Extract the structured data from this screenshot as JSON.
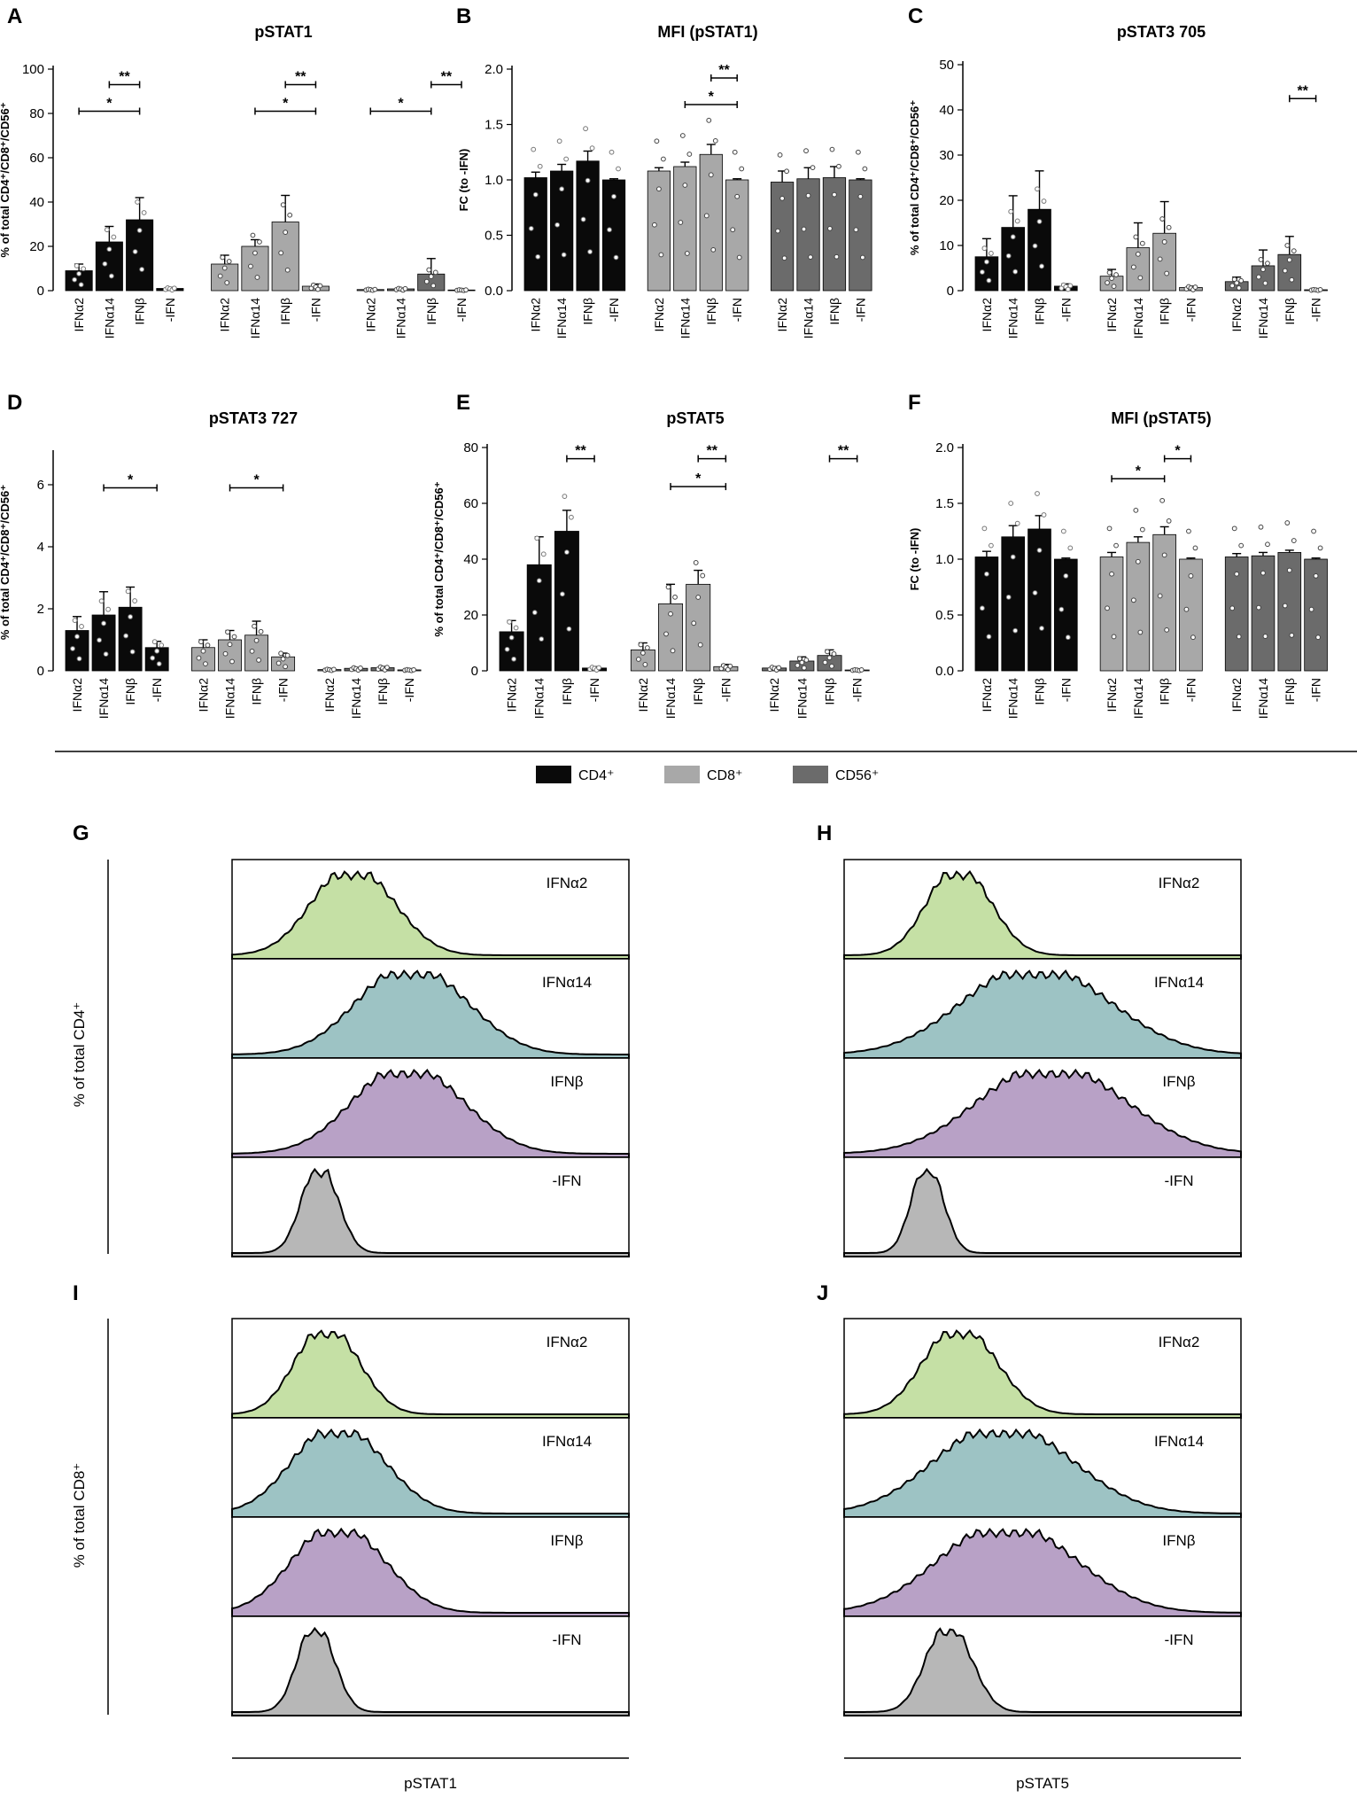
{
  "legend": {
    "items": [
      {
        "label": "CD4⁺",
        "color": "#0a0a0a"
      },
      {
        "label": "CD8⁺",
        "color": "#a8a8a8"
      },
      {
        "label": "CD56⁺",
        "color": "#6b6b6b"
      }
    ]
  },
  "group_colors": [
    "#0a0a0a",
    "#a8a8a8",
    "#6b6b6b"
  ],
  "chart_data": [
    {
      "panel": "A",
      "type": "bar",
      "title": "pSTAT1",
      "ylabel": "% of total CD4⁺/CD8⁺/CD56⁺",
      "ylim": [
        0,
        100
      ],
      "yticks": [
        "0",
        "20",
        "40",
        "60",
        "80",
        "100"
      ],
      "categories": [
        "IFNα2",
        "IFNα14",
        "IFNβ",
        "-IFN"
      ],
      "series": [
        {
          "name": "CD4⁺",
          "values": [
            9,
            22,
            32,
            1
          ],
          "errors": [
            3,
            7,
            10,
            0.5
          ]
        },
        {
          "name": "CD8⁺",
          "values": [
            12,
            20,
            31,
            2
          ],
          "errors": [
            4,
            3,
            12,
            1
          ]
        },
        {
          "name": "CD56⁺",
          "values": [
            0.5,
            0.8,
            7.5,
            0.3
          ],
          "errors": [
            0.2,
            0.3,
            7,
            0.1
          ]
        }
      ],
      "significance": [
        {
          "series": 0,
          "from": 1,
          "to": 2,
          "label": "**",
          "y": 93
        },
        {
          "series": 0,
          "from": 0,
          "to": 2,
          "label": "*",
          "y": 81
        },
        {
          "series": 1,
          "from": 2,
          "to": 3,
          "label": "**",
          "y": 93
        },
        {
          "series": 1,
          "from": 1,
          "to": 3,
          "label": "*",
          "y": 81
        },
        {
          "series": 2,
          "from": 2,
          "to": 3,
          "label": "**",
          "y": 93
        },
        {
          "series": 2,
          "from": 0,
          "to": 2,
          "label": "*",
          "y": 81
        }
      ]
    },
    {
      "panel": "B",
      "type": "bar",
      "title": "MFI (pSTAT1)",
      "ylabel": "FC (to -IFN)",
      "ylim": [
        0,
        2
      ],
      "yticks": [
        "0.0",
        "0.5",
        "1.0",
        "1.5",
        "2.0"
      ],
      "categories": [
        "IFNα2",
        "IFNα14",
        "IFNβ",
        "-IFN"
      ],
      "series": [
        {
          "name": "CD4⁺",
          "values": [
            1.02,
            1.08,
            1.17,
            1.0
          ],
          "errors": [
            0.05,
            0.06,
            0.09,
            0.01
          ]
        },
        {
          "name": "CD8⁺",
          "values": [
            1.08,
            1.12,
            1.23,
            1.0
          ],
          "errors": [
            0.03,
            0.04,
            0.09,
            0.01
          ]
        },
        {
          "name": "CD56⁺",
          "values": [
            0.98,
            1.01,
            1.02,
            1.0
          ],
          "errors": [
            0.1,
            0.1,
            0.1,
            0.01
          ]
        }
      ],
      "significance": [
        {
          "series": 1,
          "from": 2,
          "to": 3,
          "label": "**",
          "y": 1.92
        },
        {
          "series": 1,
          "from": 1,
          "to": 3,
          "label": "*",
          "y": 1.68
        }
      ]
    },
    {
      "panel": "C",
      "type": "bar",
      "title": "pSTAT3 705",
      "ylabel": "% of total CD4⁺/CD8⁺/CD56⁺",
      "ylim": [
        0,
        50
      ],
      "yticks": [
        "0",
        "10",
        "20",
        "30",
        "40",
        "50"
      ],
      "categories": [
        "IFNα2",
        "IFNα14",
        "IFNβ",
        "-IFN"
      ],
      "series": [
        {
          "name": "CD4⁺",
          "values": [
            7.5,
            14,
            18,
            1
          ],
          "errors": [
            4,
            7,
            8.5,
            0.5
          ]
        },
        {
          "name": "CD8⁺",
          "values": [
            3.2,
            9.5,
            12.7,
            0.7
          ],
          "errors": [
            1.5,
            5.5,
            7,
            0.3
          ]
        },
        {
          "name": "CD56⁺",
          "values": [
            2,
            5.5,
            8,
            0.2
          ],
          "errors": [
            1,
            3.5,
            4,
            0.1
          ]
        }
      ],
      "significance": [
        {
          "series": 2,
          "from": 2,
          "to": 3,
          "label": "**",
          "y": 42.5
        }
      ]
    },
    {
      "panel": "D",
      "type": "bar",
      "title": "pSTAT3 727",
      "ylabel": "% of total CD4⁺/CD8⁺/CD56⁺",
      "ylim": [
        0,
        7
      ],
      "yticks": [
        "0",
        "2",
        "4",
        "6"
      ],
      "categories": [
        "IFNα2",
        "IFNα14",
        "IFNβ",
        "-IFN"
      ],
      "series": [
        {
          "name": "CD4⁺",
          "values": [
            1.3,
            1.8,
            2.05,
            0.75
          ],
          "errors": [
            0.45,
            0.75,
            0.65,
            0.2
          ]
        },
        {
          "name": "CD8⁺",
          "values": [
            0.75,
            1.0,
            1.15,
            0.45
          ],
          "errors": [
            0.25,
            0.3,
            0.45,
            0.12
          ]
        },
        {
          "name": "CD56⁺",
          "values": [
            0.04,
            0.08,
            0.1,
            0.03
          ],
          "errors": [
            0.02,
            0.03,
            0.04,
            0.01
          ]
        }
      ],
      "significance": [
        {
          "series": 0,
          "from": 1,
          "to": 3,
          "label": "*",
          "y": 5.9
        },
        {
          "series": 1,
          "from": 1,
          "to": 3,
          "label": "*",
          "y": 5.9
        }
      ]
    },
    {
      "panel": "E",
      "type": "bar",
      "title": "pSTAT5",
      "ylabel": "% of total CD4⁺/CD8⁺/CD56⁺",
      "ylim": [
        0,
        80
      ],
      "yticks": [
        "0",
        "20",
        "40",
        "60",
        "80"
      ],
      "categories": [
        "IFNα2",
        "IFNα14",
        "IFNβ",
        "-IFN"
      ],
      "series": [
        {
          "name": "CD4⁺",
          "values": [
            14,
            38,
            50,
            1
          ],
          "errors": [
            4,
            10,
            7.5,
            0.5
          ]
        },
        {
          "name": "CD8⁺",
          "values": [
            7.5,
            24,
            31,
            1.5
          ],
          "errors": [
            2.5,
            7,
            5,
            0.8
          ]
        },
        {
          "name": "CD56⁺",
          "values": [
            1,
            3.5,
            5.5,
            0.3
          ],
          "errors": [
            0.5,
            1.5,
            2,
            0.1
          ]
        }
      ],
      "significance": [
        {
          "series": 0,
          "from": 2,
          "to": 3,
          "label": "**",
          "y": 76
        },
        {
          "series": 1,
          "from": 2,
          "to": 3,
          "label": "**",
          "y": 76
        },
        {
          "series": 1,
          "from": 1,
          "to": 3,
          "label": "*",
          "y": 66
        },
        {
          "series": 2,
          "from": 2,
          "to": 3,
          "label": "**",
          "y": 76
        }
      ]
    },
    {
      "panel": "F",
      "type": "bar",
      "title": "MFI (pSTAT5)",
      "ylabel": "FC (to -IFN)",
      "ylim": [
        0,
        2
      ],
      "yticks": [
        "0.0",
        "0.5",
        "1.0",
        "1.5",
        "2.0"
      ],
      "categories": [
        "IFNα2",
        "IFNα14",
        "IFNβ",
        "-IFN"
      ],
      "series": [
        {
          "name": "CD4⁺",
          "values": [
            1.02,
            1.2,
            1.27,
            1.0
          ],
          "errors": [
            0.05,
            0.1,
            0.12,
            0.01
          ]
        },
        {
          "name": "CD8⁺",
          "values": [
            1.02,
            1.15,
            1.22,
            1.0
          ],
          "errors": [
            0.04,
            0.05,
            0.07,
            0.01
          ]
        },
        {
          "name": "CD56⁺",
          "values": [
            1.02,
            1.03,
            1.06,
            1.0
          ],
          "errors": [
            0.03,
            0.03,
            0.02,
            0.01
          ]
        }
      ],
      "significance": [
        {
          "series": 1,
          "from": 0,
          "to": 2,
          "label": "*",
          "y": 1.72
        },
        {
          "series": 1,
          "from": 2,
          "to": 3,
          "label": "*",
          "y": 1.9
        }
      ]
    }
  ],
  "histograms": {
    "conditions": [
      {
        "label": "IFNα2",
        "color": "#c5e0a5"
      },
      {
        "label": "IFNα14",
        "color": "#9dc3c4"
      },
      {
        "label": "IFNβ",
        "color": "#b8a1c6"
      },
      {
        "label": "-IFN",
        "color": "#b7b7b7"
      }
    ],
    "panels": [
      {
        "panel": "G",
        "ylabel": "% of total CD4⁺",
        "xlabel": "",
        "peaks": [
          [
            0.28,
            0.09
          ],
          [
            0.42,
            0.12
          ],
          [
            0.41,
            0.12
          ],
          [
            0.21,
            0.04
          ]
        ]
      },
      {
        "panel": "H",
        "ylabel": "",
        "xlabel": "",
        "peaks": [
          [
            0.27,
            0.07
          ],
          [
            0.44,
            0.16
          ],
          [
            0.48,
            0.16
          ],
          [
            0.2,
            0.035
          ]
        ]
      },
      {
        "panel": "I",
        "ylabel": "% of total CD8⁺",
        "xlabel": "pSTAT1",
        "peaks": [
          [
            0.22,
            0.07
          ],
          [
            0.24,
            0.1
          ],
          [
            0.24,
            0.1
          ],
          [
            0.2,
            0.04
          ]
        ]
      },
      {
        "panel": "J",
        "ylabel": "",
        "xlabel": "pSTAT5",
        "peaks": [
          [
            0.27,
            0.08
          ],
          [
            0.36,
            0.15
          ],
          [
            0.37,
            0.15
          ],
          [
            0.25,
            0.05
          ]
        ]
      }
    ]
  }
}
